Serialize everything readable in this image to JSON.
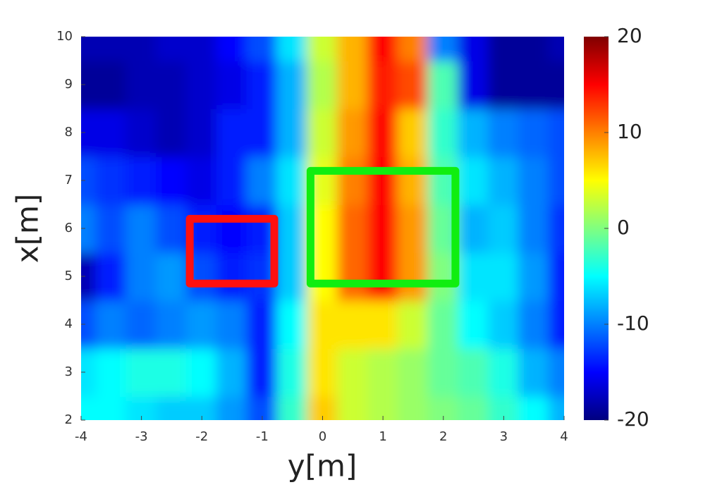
{
  "chart_data": {
    "type": "heatmap",
    "xlabel": "y[m]",
    "ylabel": "x[m]",
    "cols": [
      -4,
      -3.5,
      -3,
      -2.5,
      -2,
      -1.5,
      -1,
      -0.5,
      0,
      0.5,
      1,
      1.5,
      2,
      2.5,
      3,
      3.5,
      4
    ],
    "rows": [
      2,
      3,
      4,
      5,
      6,
      7,
      8,
      9,
      10
    ],
    "z": [
      [
        -5,
        -5,
        -6,
        -7,
        -7,
        -9,
        -12,
        -3,
        7,
        3,
        2,
        1,
        0,
        -1,
        -3,
        -5,
        -8
      ],
      [
        -6,
        -5,
        -4,
        -4,
        -5,
        -8,
        -14,
        -4,
        6,
        3,
        2,
        1,
        -1,
        -2,
        -4,
        -8,
        -10
      ],
      [
        -12,
        -10,
        -11,
        -10,
        -9,
        -10,
        -14,
        -5,
        6,
        6,
        6,
        3,
        -1,
        -5,
        -7,
        -10,
        -14
      ],
      [
        -18,
        -14,
        -10,
        -9,
        -12,
        -14,
        -13,
        -7,
        5,
        11,
        15,
        9,
        0,
        -6,
        -6,
        -9,
        -14
      ],
      [
        -10,
        -12,
        -10,
        -12,
        -14,
        -15,
        -14,
        -7,
        5,
        11,
        15,
        9,
        -1,
        -8,
        -7,
        -10,
        -13
      ],
      [
        -12,
        -13,
        -14,
        -15,
        -16,
        -14,
        -10,
        -6,
        4,
        10,
        15,
        8,
        -2,
        -6,
        -8,
        -10,
        -12
      ],
      [
        -16,
        -16,
        -17,
        -18,
        -17,
        -14,
        -14,
        -8,
        3,
        9,
        15,
        7,
        -3,
        -8,
        -10,
        -11,
        -12
      ],
      [
        -19,
        -19,
        -18,
        -18,
        -17,
        -16,
        -14,
        -8,
        2,
        8,
        14,
        12,
        -2,
        -16,
        -19,
        -19,
        -19
      ],
      [
        -18,
        -18,
        -18,
        -17,
        -17,
        -15,
        -12,
        -6,
        3,
        8,
        15,
        10,
        -10,
        -16,
        -19,
        -19,
        -18
      ]
    ],
    "xlim": [
      -4,
      4
    ],
    "xticks": [
      -4,
      -3,
      -2,
      -1,
      0,
      1,
      2,
      3,
      4
    ],
    "ylim": [
      2,
      10
    ],
    "yticks": [
      2,
      3,
      4,
      5,
      6,
      7,
      8,
      9,
      10
    ],
    "clim": [
      -20,
      20
    ],
    "cticks": [
      -20,
      -10,
      0,
      10,
      20
    ],
    "rectangles": [
      {
        "color": "#ff1010",
        "x0": -2.2,
        "x1": -0.8,
        "y0": 4.85,
        "y1": 6.2
      },
      {
        "color": "#10ee10",
        "x0": -0.2,
        "x1": 2.2,
        "y0": 4.85,
        "y1": 7.2
      }
    ]
  }
}
